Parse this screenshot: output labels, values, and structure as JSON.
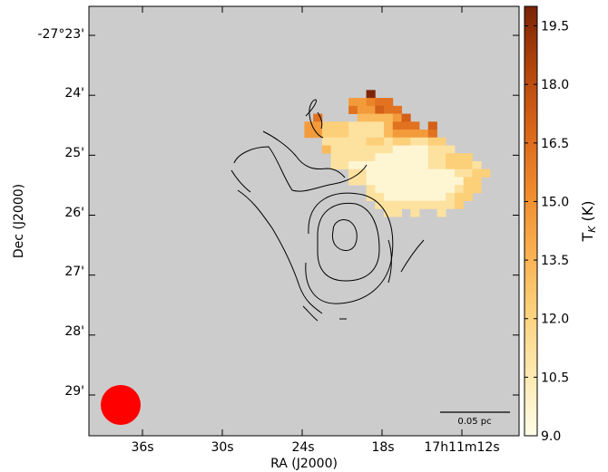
{
  "chart_data": {
    "type": "heatmap",
    "title": "",
    "xlabel": "RA (J2000)",
    "ylabel": "Dec (J2000)",
    "x_tick_labels": [
      "36s",
      "30s",
      "24s",
      "18s",
      "17h11m12s"
    ],
    "y_tick_labels": [
      "-27°23'",
      "24'",
      "25'",
      "26'",
      "27'",
      "28'",
      "29'"
    ],
    "colorbar": {
      "label": "T",
      "label_subscript": "K",
      "label_unit": " (K)",
      "ticks": [
        "19.5",
        "18.0",
        "16.5",
        "15.0",
        "13.5",
        "12.0",
        "10.5",
        "9.0"
      ],
      "range": [
        9.0,
        20.0
      ],
      "colors": [
        "#fffde8",
        "#fde9b0",
        "#fcd27e",
        "#f9b04f",
        "#ef8a2c",
        "#d9651a",
        "#b2440c",
        "#7a2407"
      ]
    },
    "scale_bar": {
      "label": "0.05 pc"
    },
    "beam": {
      "color": "#ff0000"
    },
    "background_color": "#cccccc",
    "pixel_size_arcsec": 12,
    "map_origin": {
      "ra_offset_s": 22.3,
      "dec_arcmin_top": 23.78
    },
    "grid_rows": [
      "......................",
      "........K.............",
      "......EEFGG...........",
      "......GEEHGG..........",
      "..G....DDDDEH.........",
      ".EECCCBBBBDGGG.H......",
      ".EECCCBBBBDEEEEG......",
      "...BBBBBCCBCCBBCC.....",
      "...DBBBBBBBAAAABBB....",
      "....BBBBBAAAAAABBCCC..",
      "....BBAAAAAAAAABBCCCB.",
      "......BBAAAAAAAAAABBCC.",
      "......BBAAAAAAAAAAACC..",
      "........BAAAAAAAAABCC..",
      "........BBAAAAAAABCC...",
      ".........BBBBBBBBBC....",
      "..........BB.B..B......"
    ]
  }
}
